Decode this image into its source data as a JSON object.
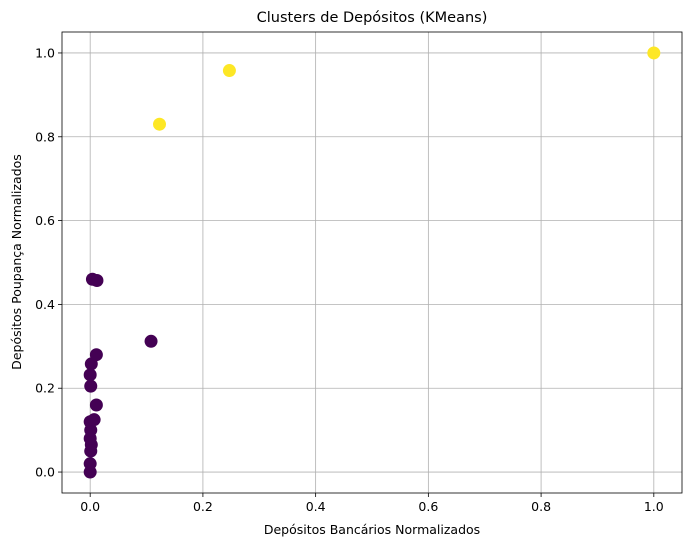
{
  "chart_data": {
    "type": "scatter",
    "title": "Clusters de Depósitos (KMeans)",
    "xlabel": "Depósitos Bancários Normalizados",
    "ylabel": "Depósitos Poupança Normalizados",
    "xlim": [
      -0.05,
      1.05
    ],
    "ylim": [
      -0.05,
      1.05
    ],
    "xticks": [
      0.0,
      0.2,
      0.4,
      0.6,
      0.8,
      1.0
    ],
    "xtick_labels": [
      "0.0",
      "0.2",
      "0.4",
      "0.6",
      "0.8",
      "1.0"
    ],
    "yticks": [
      0.0,
      0.2,
      0.4,
      0.6,
      0.8,
      1.0
    ],
    "ytick_labels": [
      "0.0",
      "0.2",
      "0.4",
      "0.6",
      "0.8",
      "1.0"
    ],
    "grid": true,
    "legend": "none",
    "cluster_colors": [
      "#440154",
      "#fde725"
    ],
    "points": [
      {
        "x": 0.0,
        "y": 0.0,
        "cluster": 0
      },
      {
        "x": 0.0,
        "y": 0.02,
        "cluster": 0
      },
      {
        "x": 0.001,
        "y": 0.05,
        "cluster": 0
      },
      {
        "x": 0.002,
        "y": 0.065,
        "cluster": 0
      },
      {
        "x": 0.0,
        "y": 0.08,
        "cluster": 0
      },
      {
        "x": 0.001,
        "y": 0.1,
        "cluster": 0
      },
      {
        "x": 0.0,
        "y": 0.12,
        "cluster": 0
      },
      {
        "x": 0.007,
        "y": 0.125,
        "cluster": 0
      },
      {
        "x": 0.011,
        "y": 0.16,
        "cluster": 0
      },
      {
        "x": 0.001,
        "y": 0.205,
        "cluster": 0
      },
      {
        "x": 0.0,
        "y": 0.232,
        "cluster": 0
      },
      {
        "x": 0.002,
        "y": 0.258,
        "cluster": 0
      },
      {
        "x": 0.011,
        "y": 0.28,
        "cluster": 0
      },
      {
        "x": 0.108,
        "y": 0.312,
        "cluster": 0
      },
      {
        "x": 0.004,
        "y": 0.46,
        "cluster": 0
      },
      {
        "x": 0.012,
        "y": 0.457,
        "cluster": 0
      },
      {
        "x": 0.123,
        "y": 0.83,
        "cluster": 1
      },
      {
        "x": 0.247,
        "y": 0.958,
        "cluster": 1
      },
      {
        "x": 1.0,
        "y": 1.0,
        "cluster": 1
      }
    ]
  }
}
